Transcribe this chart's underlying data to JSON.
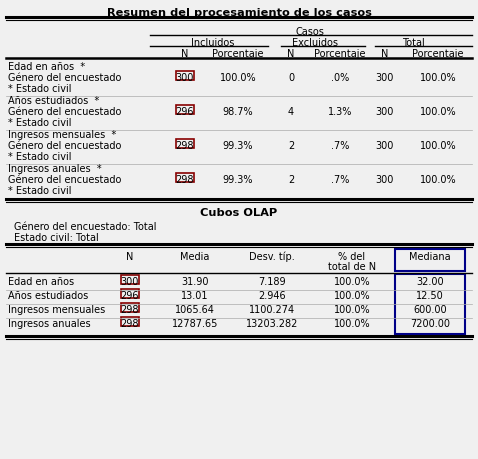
{
  "title1": "Resumen del procesamiento de los casos",
  "title2": "Cubos OLAP",
  "subtitle1": "Género del encuestado: Total",
  "subtitle2": "Estado civil: Total",
  "t1_rows": [
    {
      "l1": "Edad en años  *",
      "l2": "Género del encuestado",
      "l3": "* Estado civil",
      "ni": "300",
      "pi": "100.0%",
      "ne": "0",
      "pe": ".0%",
      "nt": "300",
      "pt": "100.0%"
    },
    {
      "l1": "Años estudiados  *",
      "l2": "Género del encuestado",
      "l3": "* Estado civil",
      "ni": "296",
      "pi": "98.7%",
      "ne": "4",
      "pe": "1.3%",
      "nt": "300",
      "pt": "100.0%"
    },
    {
      "l1": "Ingresos mensuales  *",
      "l2": "Género del encuestado",
      "l3": "* Estado civil",
      "ni": "298",
      "pi": "99.3%",
      "ne": "2",
      "pe": ".7%",
      "nt": "300",
      "pt": "100.0%"
    },
    {
      "l1": "Ingresos anuales  *",
      "l2": "Género del encuestado",
      "l3": "* Estado civil",
      "ni": "298",
      "pi": "99.3%",
      "ne": "2",
      "pe": ".7%",
      "nt": "300",
      "pt": "100.0%"
    }
  ],
  "t2_rows": [
    {
      "label": "Edad en años",
      "n": "300",
      "media": "31.90",
      "desv": "7.189",
      "pct": "100.0%",
      "med": "32.00"
    },
    {
      "label": "Años estudiados",
      "n": "296",
      "media": "13.01",
      "desv": "2.946",
      "pct": "100.0%",
      "med": "12.50"
    },
    {
      "label": "Ingresos mensuales",
      "n": "298",
      "media": "1065.64",
      "desv": "1100.274",
      "pct": "100.0%",
      "med": "600.00"
    },
    {
      "label": "Ingresos anuales",
      "n": "298",
      "media": "12787.65",
      "desv": "13203.282",
      "pct": "100.0%",
      "med": "7200.00"
    }
  ],
  "bg": "#f0f0f0",
  "red_box": "#880000",
  "blue_box": "#000088"
}
